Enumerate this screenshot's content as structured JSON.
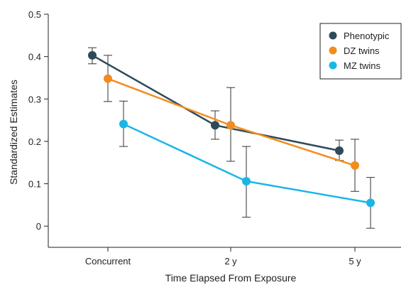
{
  "chart_data": {
    "type": "line",
    "categories": [
      "Concurrent",
      "2 y",
      "5 y"
    ],
    "xlabel": "Time Elapsed From Exposure",
    "ylabel": "Standardized Estimates",
    "ylim": [
      -0.05,
      0.5
    ],
    "yticks": [
      0,
      0.1,
      0.2,
      0.3,
      0.4,
      0.5
    ],
    "ytick_labels": [
      "0",
      "0.1",
      "0.2",
      "0.3",
      "0.4",
      "0.5"
    ],
    "grid": false,
    "legend_position": "top-right",
    "series": [
      {
        "name": "Phenotypic",
        "color": "#2e4a5a",
        "values": [
          0.403,
          0.238,
          0.178
        ],
        "ci_low": [
          0.383,
          0.205,
          0.155
        ],
        "ci_high": [
          0.421,
          0.272,
          0.203
        ]
      },
      {
        "name": "DZ twins",
        "color": "#f28c1e",
        "values": [
          0.348,
          0.238,
          0.143
        ],
        "ci_low": [
          0.294,
          0.153,
          0.082
        ],
        "ci_high": [
          0.403,
          0.327,
          0.205
        ]
      },
      {
        "name": "MZ twins",
        "color": "#1ab6e8",
        "values": [
          0.241,
          0.106,
          0.055
        ],
        "ci_low": [
          0.188,
          0.021,
          -0.005
        ],
        "ci_high": [
          0.295,
          0.188,
          0.115
        ]
      }
    ]
  }
}
